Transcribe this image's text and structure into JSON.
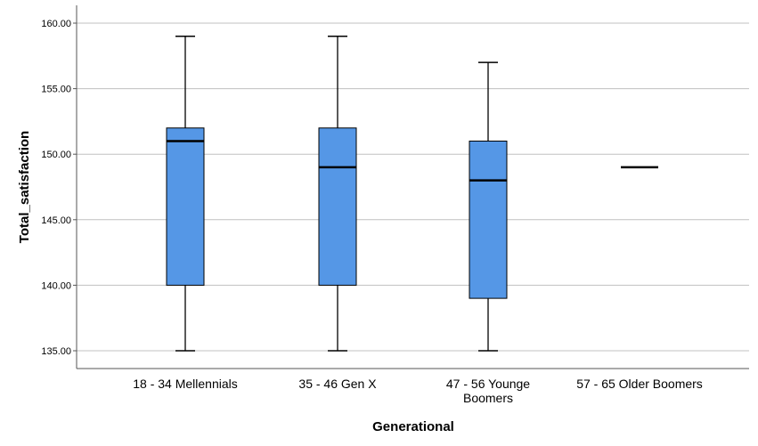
{
  "chart_data": {
    "type": "boxplot",
    "title": "",
    "xlabel": "Generational",
    "ylabel": "Total_satisfaction",
    "ylim": [
      135,
      160
    ],
    "yticks": [
      "135.00",
      "140.00",
      "145.00",
      "150.00",
      "155.00",
      "160.00"
    ],
    "grid": true,
    "box_color": "#5597e6",
    "categories": [
      {
        "label_lines": [
          "18 - 34 Mellennials"
        ],
        "min": 135,
        "q1": 140,
        "median": 151,
        "q3": 152,
        "max": 159
      },
      {
        "label_lines": [
          "35 - 46 Gen X"
        ],
        "min": 135,
        "q1": 140,
        "median": 149,
        "q3": 152,
        "max": 159
      },
      {
        "label_lines": [
          "47 - 56 Younge",
          "Boomers"
        ],
        "min": 135,
        "q1": 139,
        "median": 148,
        "q3": 151,
        "max": 157
      },
      {
        "label_lines": [
          "57 - 65 Older Boomers"
        ],
        "min": 149,
        "q1": 149,
        "median": 149,
        "q3": 149,
        "max": 149
      }
    ]
  }
}
